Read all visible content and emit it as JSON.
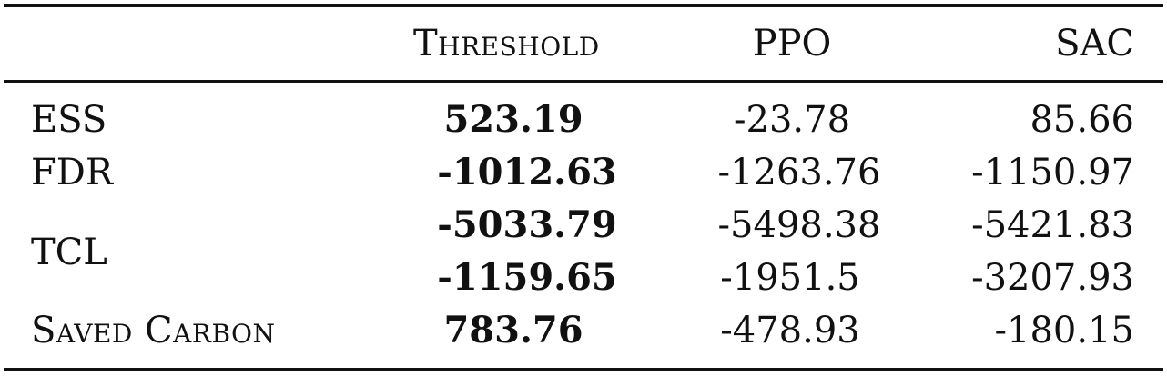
{
  "table": {
    "headers": [
      "",
      "Threshold",
      "PPO",
      "SAC"
    ],
    "rows": [
      {
        "label": "ESS",
        "threshold": "523.19",
        "ppo": "-23.78",
        "sac": "85.66"
      },
      {
        "label": "FDR",
        "threshold": "-1012.63",
        "ppo": "-1263.76",
        "sac": "-1150.97"
      },
      {
        "label": "TCL",
        "threshold": "-5033.79",
        "ppo": "-5498.38",
        "sac": "-5421.83"
      },
      {
        "label": "",
        "threshold": "-1159.65",
        "ppo": "-1951.5",
        "sac": "-3207.93"
      },
      {
        "label": "Saved Carbon",
        "threshold": "783.76",
        "ppo": "-478.93",
        "sac": "-180.15"
      }
    ]
  }
}
